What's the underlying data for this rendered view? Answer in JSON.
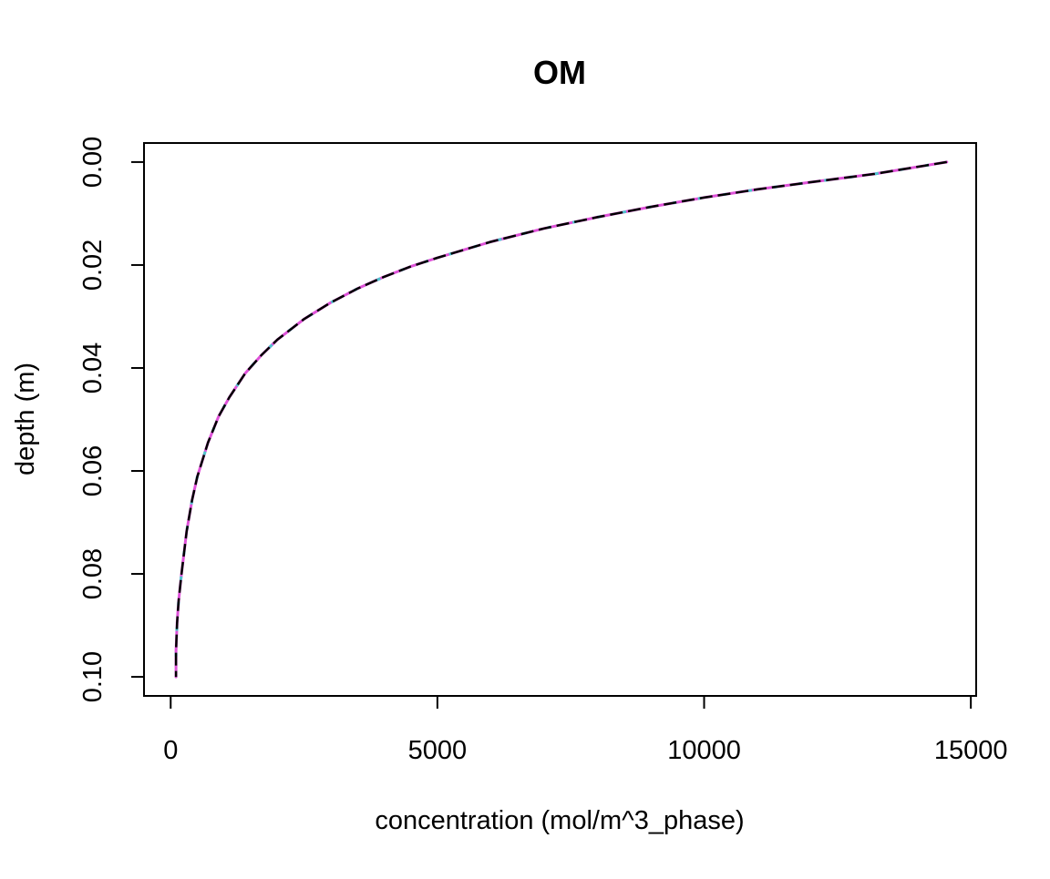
{
  "chart_data": {
    "type": "line",
    "title": "OM",
    "xlabel": "concentration (mol/m^3_phase)",
    "ylabel": "depth (m)",
    "xlim": [
      -500,
      15100
    ],
    "ylim": [
      0.1037,
      -0.0037
    ],
    "y_reversed": true,
    "grid": false,
    "legend": "none",
    "x_ticks": [
      0,
      5000,
      10000,
      15000
    ],
    "x_tick_labels": [
      "0",
      "5000",
      "10000",
      "15000"
    ],
    "y_ticks": [
      0.0,
      0.02,
      0.04,
      0.06,
      0.08,
      0.1
    ],
    "y_tick_labels": [
      "0.00",
      "0.02",
      "0.04",
      "0.06",
      "0.08",
      "0.10"
    ],
    "colors": {
      "axis": "#000000",
      "series_main": "#000000",
      "series_overlay_1": "#df52d9",
      "series_overlay_2": "#4fc3cf"
    },
    "series": [
      {
        "x": [
          14550,
          13200,
          12000,
          11000,
          10000,
          9000,
          8000,
          7000,
          6000,
          5000,
          4500,
          4000,
          3500,
          3000,
          2500,
          2000,
          1700,
          1400,
          1100,
          900,
          700,
          500,
          400,
          300,
          200,
          150,
          120,
          100,
          100
        ],
        "y": [
          0.0,
          0.0023,
          0.0039,
          0.0053,
          0.0069,
          0.0087,
          0.0107,
          0.0129,
          0.0155,
          0.0186,
          0.0203,
          0.0223,
          0.0246,
          0.0273,
          0.0305,
          0.0345,
          0.0375,
          0.041,
          0.0457,
          0.0494,
          0.0545,
          0.0611,
          0.0657,
          0.0717,
          0.0802,
          0.0852,
          0.0895,
          0.095,
          0.1
        ]
      }
    ]
  }
}
